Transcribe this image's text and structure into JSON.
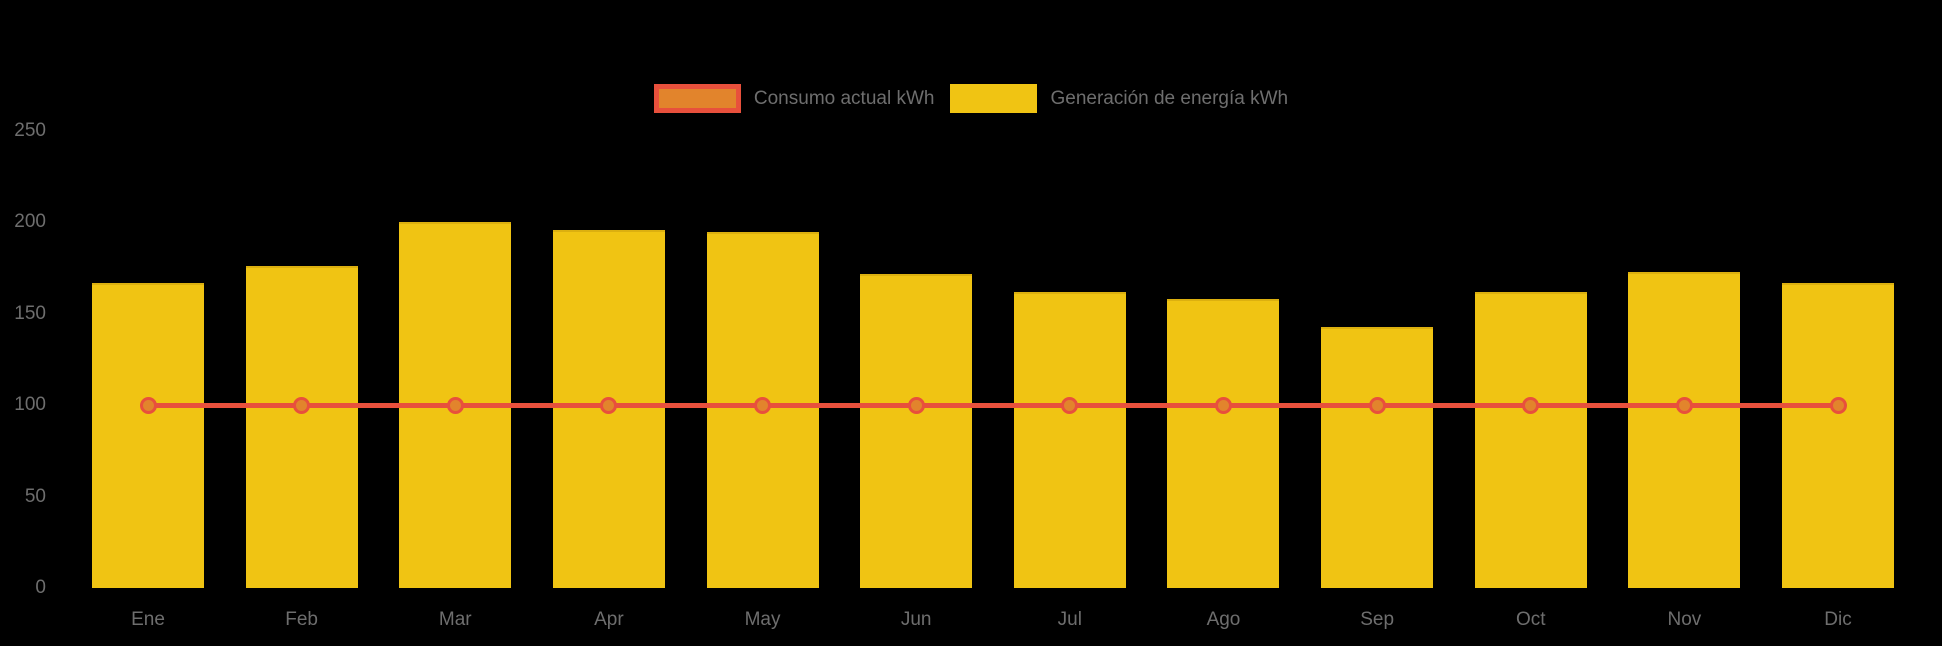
{
  "colors": {
    "background": "#000000",
    "bar": "#f0c413",
    "bar_edge": "#dcb00f",
    "line": "#e8503c",
    "marker_fill": "#e2842c",
    "text": "#6e6e6e"
  },
  "legend": {
    "items": [
      {
        "id": "consumo",
        "label": "Consumo actual kWh"
      },
      {
        "id": "generacion",
        "label": "Generación de energía kWh"
      }
    ]
  },
  "chart_data": {
    "type": "bar",
    "categories": [
      "Ene",
      "Feb",
      "Mar",
      "Apr",
      "May",
      "Jun",
      "Jul",
      "Ago",
      "Sep",
      "Oct",
      "Nov",
      "Dic"
    ],
    "series": [
      {
        "name": "Consumo actual kWh",
        "type": "line",
        "color": "#e8503c",
        "marker_color": "#e2842c",
        "values": [
          100,
          100,
          100,
          100,
          100,
          100,
          100,
          100,
          100,
          100,
          100,
          100
        ]
      },
      {
        "name": "Generación de energía kWh",
        "type": "bar",
        "color": "#f0c413",
        "values": [
          167,
          176,
          200,
          196,
          195,
          172,
          162,
          158,
          143,
          162,
          173,
          167
        ]
      }
    ],
    "title": "",
    "xlabel": "",
    "ylabel": "",
    "ylim": [
      0,
      250
    ],
    "yticks": [
      0,
      50,
      100,
      150,
      200,
      250
    ],
    "grid": false,
    "legend_position": "top-center",
    "background": "#000000"
  }
}
